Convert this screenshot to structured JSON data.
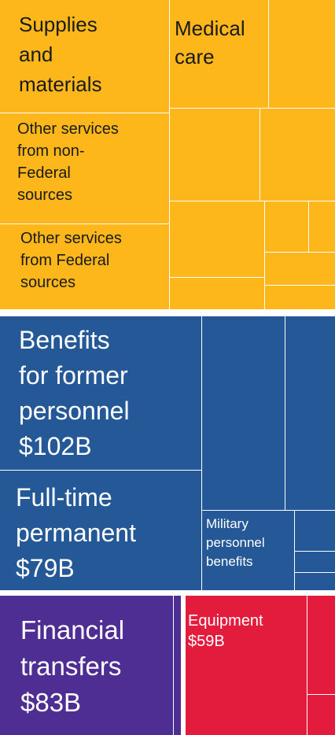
{
  "blocks": [
    {
      "lines": [
        "Supplies",
        "and",
        "materials"
      ]
    },
    {
      "lines": [
        "Medical",
        "care"
      ]
    },
    {
      "lines": [
        "Other services",
        "from non-",
        "Federal",
        "sources"
      ]
    },
    {
      "lines": [
        "Other services",
        "from Federal",
        "sources"
      ]
    },
    {
      "lines": [
        "Benefits",
        "for former",
        "personnel",
        "$102B"
      ]
    },
    {
      "lines": [
        "Full-time",
        "permanent",
        "$79B"
      ]
    },
    {
      "lines": [
        "Military",
        "personnel",
        "benefits"
      ]
    },
    {
      "lines": [
        "Financial",
        "transfers",
        "$83B"
      ]
    },
    {
      "lines": [
        "Equipment",
        "$59B"
      ]
    }
  ]
}
